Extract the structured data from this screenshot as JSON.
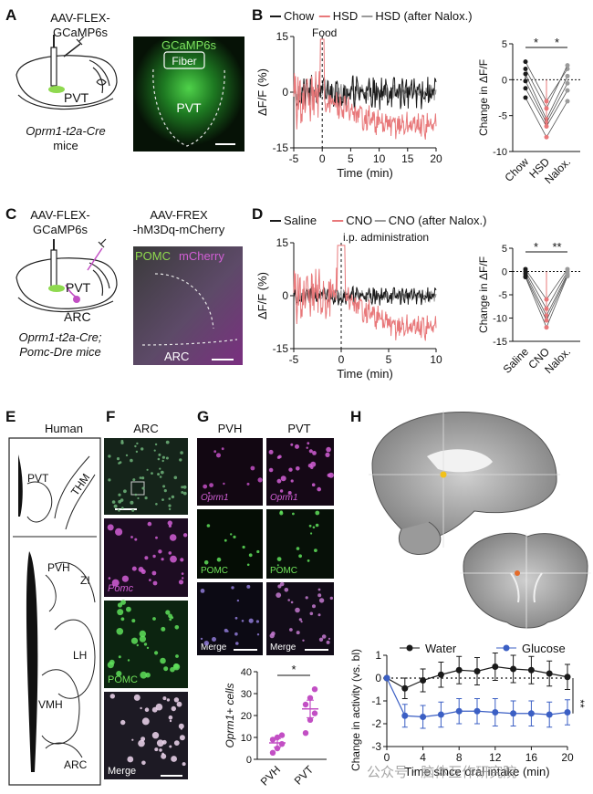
{
  "panel_letters": [
    "A",
    "B",
    "C",
    "D",
    "E",
    "F",
    "G",
    "H"
  ],
  "panelA": {
    "virus_l1": "AAV-FLEX-",
    "virus_l2": "GCaMP6s",
    "region": "PVT",
    "mouse_l1": "Oprm1-t2a-Cre",
    "mouse_l2": "mice",
    "img_title": "GCaMP6s",
    "img_fiber": "Fiber",
    "img_region": "PVT"
  },
  "panelC": {
    "virus1_l1": "AAV-FLEX-",
    "virus1_l2": "GCaMP6s",
    "virus2_l1": "AAV-FREX",
    "virus2_l2": "-hM3Dq-mCherry",
    "region1": "PVT",
    "region2": "ARC",
    "mouse_l1": "Oprm1-t2a-Cre;",
    "mouse_l2": "Pomc-Dre mice",
    "img_pomc": "POMC",
    "img_mcherry": "mCherry",
    "img_arc": "ARC"
  },
  "panelE": {
    "title": "Human",
    "labels": [
      "PVT",
      "THM",
      "PVH",
      "ZI",
      "LH",
      "VMH",
      "ARC"
    ]
  },
  "panelF": {
    "title": "ARC",
    "labels": [
      "Pomc",
      "POMC",
      "Merge"
    ]
  },
  "panelG": {
    "col1": "PVH",
    "col2": "PVT",
    "rows": [
      "Oprm1",
      "POMC",
      "Merge"
    ]
  },
  "colors": {
    "black": "#1a1a1a",
    "red": "#e8787a",
    "gray": "#9a9a9a",
    "magenta": "#c24fc4",
    "blue": "#3b5fc4"
  },
  "chart_data": [
    {
      "id": "B-trace",
      "type": "line",
      "legend": [
        "Chow",
        "HSD",
        "HSD (after Nalox.)"
      ],
      "annotation": "Food",
      "xlabel": "Time (min)",
      "ylabel": "ΔF/F (%)",
      "xticks": [
        -5,
        0,
        5,
        10,
        15,
        20
      ],
      "yticks": [
        -15,
        0,
        15
      ],
      "xlim": [
        -5,
        20
      ],
      "ylim": [
        -15,
        15
      ],
      "series": [
        {
          "name": "Chow",
          "baseline": 0,
          "noise": 3.5
        },
        {
          "name": "HSD",
          "baseline": -2,
          "noise": 3,
          "drop_to": -9
        },
        {
          "name": "HSD (after Nalox.)",
          "baseline": 0,
          "noise": 2
        }
      ]
    },
    {
      "id": "B-summary",
      "type": "scatter",
      "categories": [
        "Chow",
        "HSD",
        "Nalox."
      ],
      "ylabel": "Change in ΔF/F",
      "yticks": [
        -10,
        -5,
        0,
        5
      ],
      "ylim": [
        -10,
        5
      ],
      "significance": [
        "*",
        "*"
      ],
      "subjects": [
        [
          2.5,
          -3,
          1.5
        ],
        [
          1.5,
          -4,
          2
        ],
        [
          0.8,
          -5.5,
          0.5
        ],
        [
          -0.2,
          -6,
          -0.5
        ],
        [
          -1.2,
          -6.5,
          -1.5
        ],
        [
          -2.5,
          -8,
          -3
        ]
      ],
      "means": [
        0.5,
        -5.5,
        -0.3
      ]
    },
    {
      "id": "D-trace",
      "type": "line",
      "legend": [
        "Saline",
        "CNO",
        "CNO (after Nalox.)"
      ],
      "annotation": "i.p. administration",
      "xlabel": "Time (min)",
      "ylabel": "ΔF/F (%)",
      "xticks": [
        -5,
        0,
        5,
        10
      ],
      "yticks": [
        -15,
        0,
        15
      ],
      "xlim": [
        -5,
        10
      ],
      "ylim": [
        -15,
        15
      ],
      "series": [
        {
          "name": "Saline",
          "baseline": 0,
          "noise": 2
        },
        {
          "name": "CNO",
          "baseline": 0,
          "noise": 3,
          "drop_to": -9
        },
        {
          "name": "CNO (after Nalox.)",
          "baseline": 0,
          "noise": 1.5
        }
      ]
    },
    {
      "id": "D-summary",
      "type": "scatter",
      "categories": [
        "Saline",
        "CNO",
        "Nalox."
      ],
      "ylabel": "Change in ΔF/F",
      "yticks": [
        -15,
        -10,
        -5,
        0,
        5
      ],
      "ylim": [
        -15,
        5
      ],
      "significance": [
        "*",
        "**"
      ],
      "subjects": [
        [
          0.5,
          -6,
          0.5
        ],
        [
          0,
          -8,
          0
        ],
        [
          -0.5,
          -9.5,
          -0.5
        ],
        [
          -1,
          -10.5,
          -0.8
        ],
        [
          -1.2,
          -12,
          -1
        ]
      ],
      "means": [
        -0.4,
        -9.3,
        -0.4
      ]
    },
    {
      "id": "G-bar",
      "type": "bar",
      "categories": [
        "PVH",
        "PVT"
      ],
      "ylabel": "Oprm1+ cells",
      "yticks": [
        0,
        10,
        20,
        30,
        40
      ],
      "ylim": [
        0,
        40
      ],
      "values": [
        7.5,
        23
      ],
      "errors": [
        2,
        4
      ],
      "points": [
        [
          3,
          5,
          7,
          9,
          10,
          11
        ],
        [
          12,
          18,
          21,
          25,
          28,
          32
        ]
      ],
      "significance": "*"
    },
    {
      "id": "H-line",
      "type": "line",
      "legend": [
        "Water",
        "Glucose"
      ],
      "xlabel": "Time since oral intake (min)",
      "ylabel": "Change in activity (vs. bl)",
      "xticks": [
        0,
        4,
        8,
        12,
        16,
        20
      ],
      "yticks": [
        -3,
        -2,
        -1,
        0,
        1
      ],
      "xlim": [
        0,
        20
      ],
      "ylim": [
        -3,
        1
      ],
      "significance": "**",
      "x": [
        0,
        2,
        4,
        6,
        8,
        10,
        12,
        14,
        16,
        18,
        20
      ],
      "series": [
        {
          "name": "Water",
          "values": [
            0,
            -0.45,
            -0.1,
            0.15,
            0.35,
            0.3,
            0.5,
            0.4,
            0.35,
            0.2,
            0.05
          ],
          "errors": [
            0.05,
            0.45,
            0.5,
            0.55,
            0.6,
            0.6,
            0.6,
            0.6,
            0.6,
            0.55,
            0.55
          ]
        },
        {
          "name": "Glucose",
          "values": [
            0,
            -1.65,
            -1.7,
            -1.6,
            -1.45,
            -1.45,
            -1.5,
            -1.55,
            -1.55,
            -1.6,
            -1.5
          ],
          "errors": [
            0.05,
            0.5,
            0.5,
            0.55,
            0.55,
            0.55,
            0.6,
            0.55,
            0.55,
            0.55,
            0.55
          ]
        }
      ]
    }
  ],
  "watermark": "公众号 · 脑体互作研究院"
}
